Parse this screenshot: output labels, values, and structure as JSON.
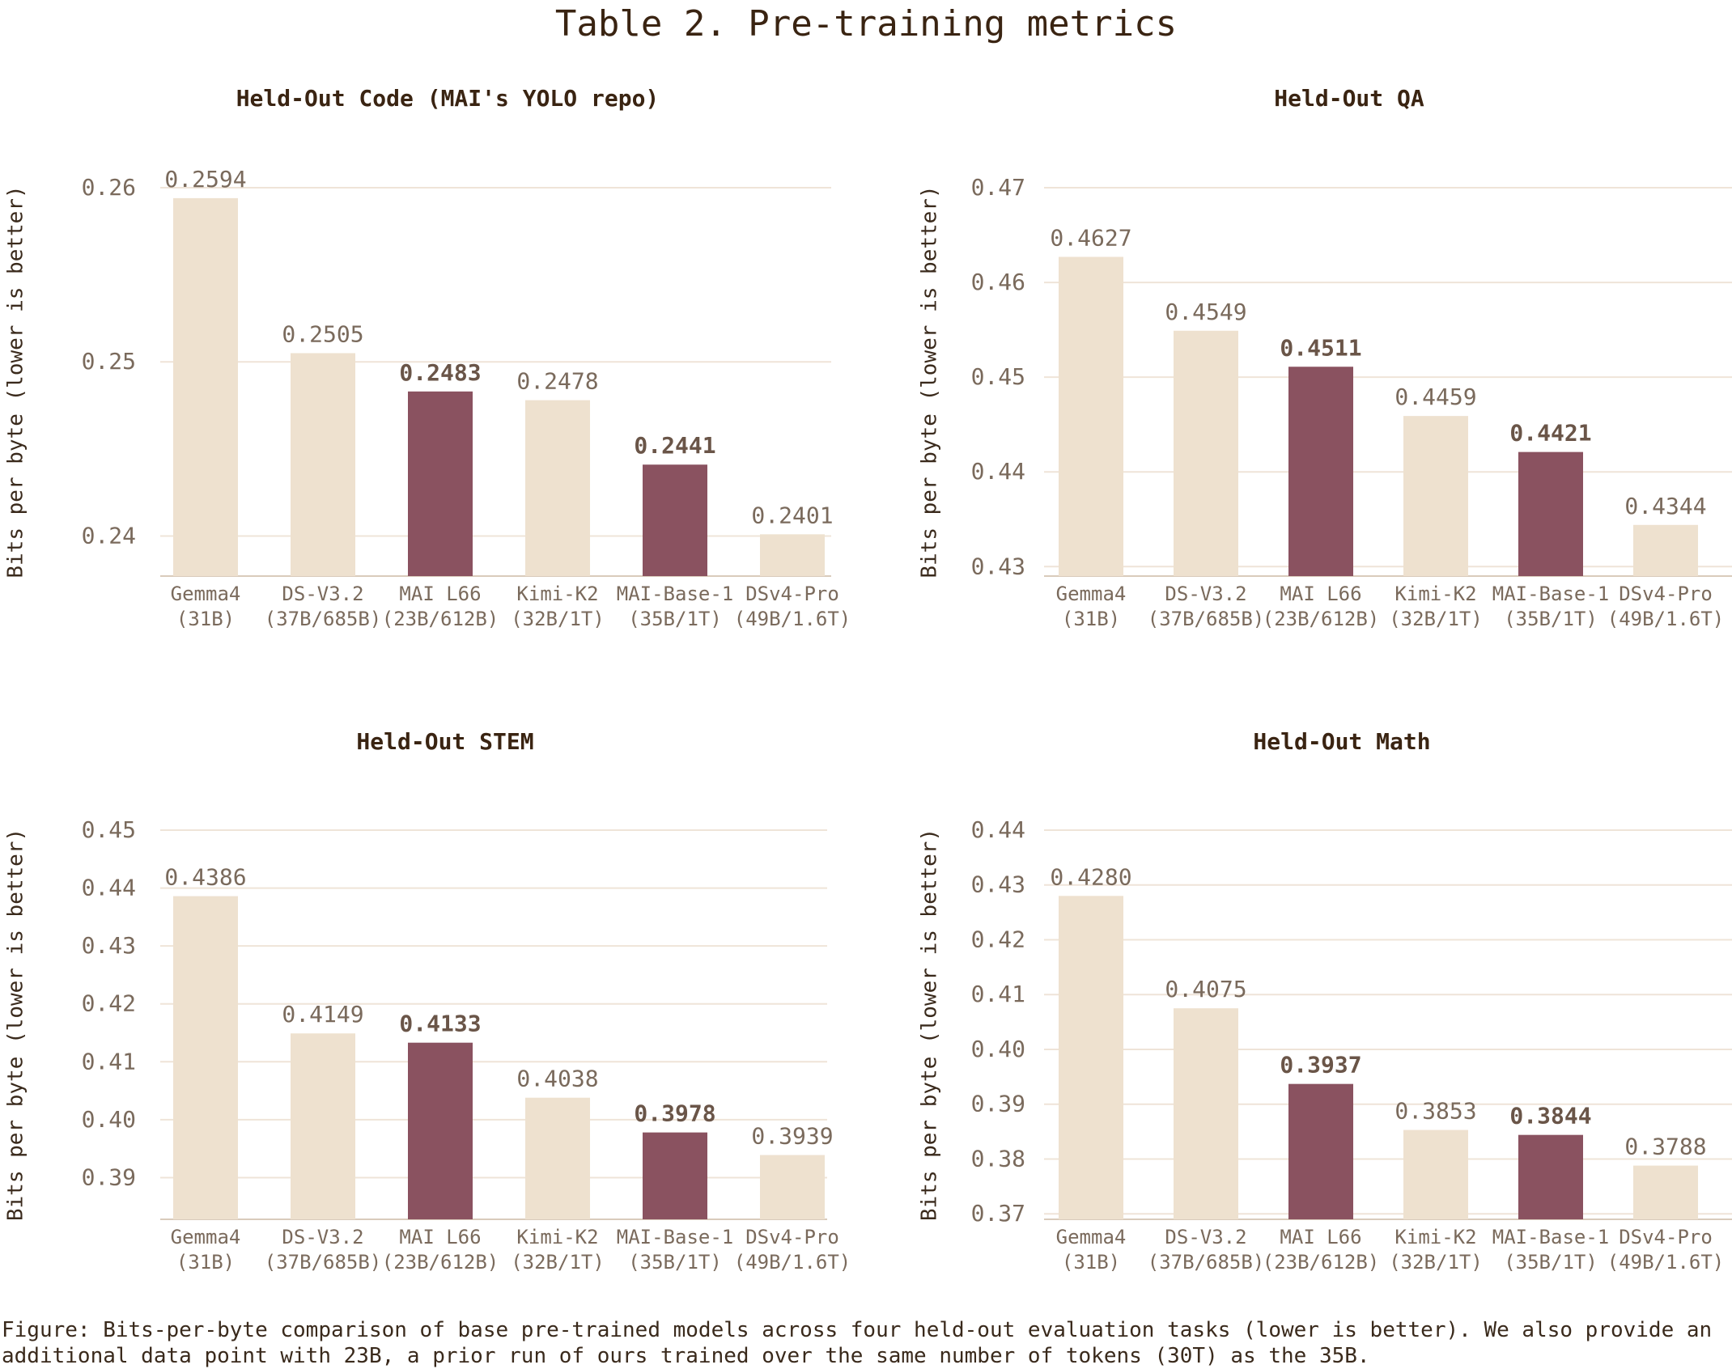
{
  "page": {
    "title": "Table 2. Pre-training metrics",
    "caption": "Figure: Bits-per-byte comparison of base pre-trained models across four held-out evaluation tasks (lower is better). We also provide an additional data point with 23B, a prior run of ours trained over the same number of tokens (30T) as the 35B."
  },
  "colors": {
    "baseline": "#eee1cf",
    "highlight": "#8a5260",
    "grid": "#efe4d8",
    "axis": "#d9cbbb",
    "title": "#3a2412",
    "label": "#7a6a5c"
  },
  "chart_data": [
    {
      "type": "bar",
      "title": "Held-Out Code (MAI's YOLO repo)",
      "ylabel": "Bits per byte (lower is better)",
      "categories": [
        [
          "Gemma4",
          "(31B)"
        ],
        [
          "DS-V3.2",
          "(37B/685B)"
        ],
        [
          "MAI L66",
          "(23B/612B)"
        ],
        [
          "Kimi-K2",
          "(32B/1T)"
        ],
        [
          "MAI-Base-1",
          "(35B/1T)"
        ],
        [
          "DSv4-Pro",
          "(49B/1.6T)"
        ]
      ],
      "values": [
        0.2594,
        0.2505,
        0.2483,
        0.2478,
        0.2441,
        0.2401
      ],
      "value_labels": [
        "0.2594",
        "0.2505",
        "0.2483",
        "0.2478",
        "0.2441",
        "0.2401"
      ],
      "highlighted": [
        false,
        false,
        true,
        false,
        true,
        false
      ],
      "ylim": [
        0.2377,
        0.26
      ],
      "yticks": [
        0.24,
        0.25,
        0.26
      ],
      "ytick_labels": [
        "0.24",
        "0.25",
        "0.26"
      ],
      "grid": true
    },
    {
      "type": "bar",
      "title": "Held-Out QA",
      "ylabel": "Bits per byte (lower is better)",
      "categories": [
        [
          "Gemma4",
          "(31B)"
        ],
        [
          "DS-V3.2",
          "(37B/685B)"
        ],
        [
          "MAI L66",
          "(23B/612B)"
        ],
        [
          "Kimi-K2",
          "(32B/1T)"
        ],
        [
          "MAI-Base-1",
          "(35B/1T)"
        ],
        [
          "DSv4-Pro",
          "(49B/1.6T)"
        ]
      ],
      "values": [
        0.4627,
        0.4549,
        0.4511,
        0.4459,
        0.4421,
        0.4344
      ],
      "value_labels": [
        "0.4627",
        "0.4549",
        "0.4511",
        "0.4459",
        "0.4421",
        "0.4344"
      ],
      "highlighted": [
        false,
        false,
        true,
        false,
        true,
        false
      ],
      "ylim": [
        0.429,
        0.47
      ],
      "yticks": [
        0.43,
        0.44,
        0.45,
        0.46,
        0.47
      ],
      "ytick_labels": [
        "0.43",
        "0.44",
        "0.45",
        "0.46",
        "0.47"
      ],
      "grid": true
    },
    {
      "type": "bar",
      "title": "Held-Out STEM",
      "ylabel": "Bits per byte (lower is better)",
      "categories": [
        [
          "Gemma4",
          "(31B)"
        ],
        [
          "DS-V3.2",
          "(37B/685B)"
        ],
        [
          "MAI L66",
          "(23B/612B)"
        ],
        [
          "Kimi-K2",
          "(32B/1T)"
        ],
        [
          "MAI-Base-1",
          "(35B/1T)"
        ],
        [
          "DSv4-Pro",
          "(49B/1.6T)"
        ]
      ],
      "values": [
        0.4386,
        0.4149,
        0.4133,
        0.4038,
        0.3978,
        0.3939
      ],
      "value_labels": [
        "0.4386",
        "0.4149",
        "0.4133",
        "0.4038",
        "0.3978",
        "0.3939"
      ],
      "highlighted": [
        false,
        false,
        true,
        false,
        true,
        false
      ],
      "ylim": [
        0.3828,
        0.45
      ],
      "yticks": [
        0.39,
        0.4,
        0.41,
        0.42,
        0.43,
        0.44,
        0.45
      ],
      "ytick_labels": [
        "0.39",
        "0.40",
        "0.41",
        "0.42",
        "0.43",
        "0.44",
        "0.45"
      ],
      "grid": true
    },
    {
      "type": "bar",
      "title": "Held-Out Math",
      "ylabel": "Bits per byte (lower is better)",
      "categories": [
        [
          "Gemma4",
          "(31B)"
        ],
        [
          "DS-V3.2",
          "(37B/685B)"
        ],
        [
          "MAI L66",
          "(23B/612B)"
        ],
        [
          "Kimi-K2",
          "(32B/1T)"
        ],
        [
          "MAI-Base-1",
          "(35B/1T)"
        ],
        [
          "DSv4-Pro",
          "(49B/1.6T)"
        ]
      ],
      "values": [
        0.428,
        0.4075,
        0.3937,
        0.3853,
        0.3844,
        0.3788
      ],
      "value_labels": [
        "0.4280",
        "0.4075",
        "0.3937",
        "0.3853",
        "0.3844",
        "0.3788"
      ],
      "highlighted": [
        false,
        false,
        true,
        false,
        true,
        false
      ],
      "ylim": [
        0.369,
        0.44
      ],
      "yticks": [
        0.37,
        0.38,
        0.39,
        0.4,
        0.41,
        0.42,
        0.43,
        0.44
      ],
      "ytick_labels": [
        "0.37",
        "0.38",
        "0.39",
        "0.40",
        "0.41",
        "0.42",
        "0.43",
        "0.44"
      ],
      "grid": true
    }
  ]
}
